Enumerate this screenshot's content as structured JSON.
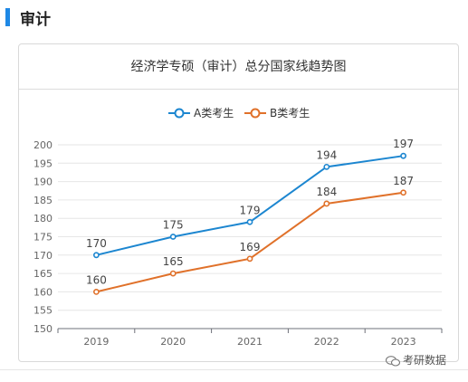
{
  "section": {
    "title": "审计"
  },
  "card": {
    "title": "经济学专硕（审计）总分国家线趋势图"
  },
  "watermark": {
    "text": "考研数据"
  },
  "chart_data": {
    "type": "line",
    "title": "经济学专硕（审计）总分国家线趋势图",
    "categories": [
      "2019",
      "2020",
      "2021",
      "2022",
      "2023"
    ],
    "series": [
      {
        "name": "A类考生",
        "color": "#1c86d0",
        "values": [
          170,
          175,
          179,
          194,
          197
        ]
      },
      {
        "name": "B类考生",
        "color": "#e0712a",
        "values": [
          160,
          165,
          169,
          184,
          187
        ]
      }
    ],
    "ylim": [
      150,
      200
    ],
    "yticks": [
      150,
      155,
      160,
      165,
      170,
      175,
      180,
      185,
      190,
      195,
      200
    ],
    "xlabel": "",
    "ylabel": "",
    "grid": true,
    "legend": "top-center"
  }
}
